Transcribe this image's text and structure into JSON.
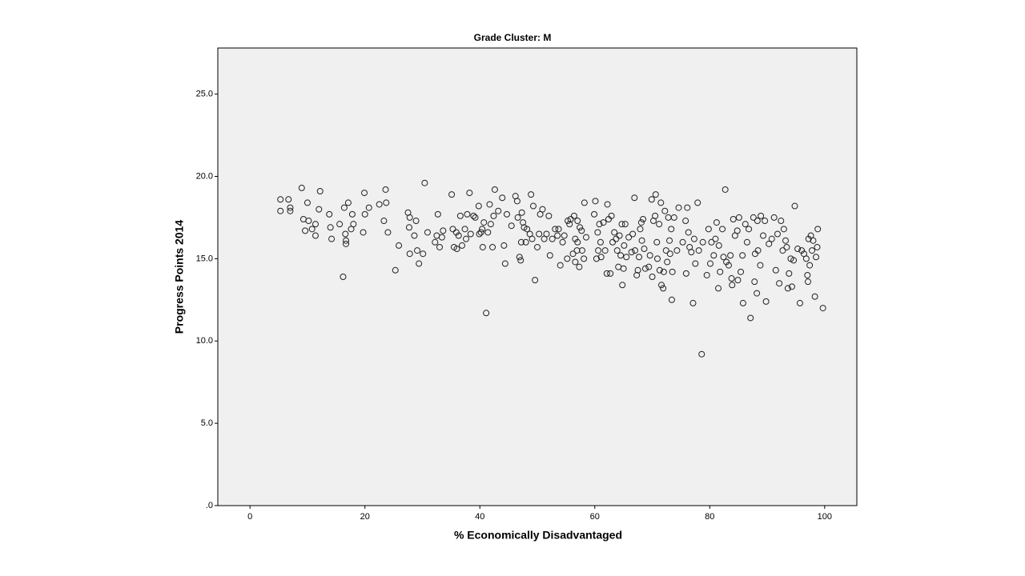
{
  "chart_data": {
    "type": "scatter",
    "title": "Grade Cluster: M",
    "x_label": "% Economically Disadvantaged",
    "y_label": "Progress Points 2014",
    "xlim": [
      -5.6,
      105.6
    ],
    "ylim": [
      0,
      27.8
    ],
    "xticks": [
      0,
      20,
      40,
      60,
      80,
      100
    ],
    "yticks": [
      {
        "value": 0,
        "label": ".0"
      },
      {
        "value": 5,
        "label": "5.0"
      },
      {
        "value": 10,
        "label": "10.0"
      },
      {
        "value": 15,
        "label": "15.0"
      },
      {
        "value": 20,
        "label": "20.0"
      },
      {
        "value": 25,
        "label": "25.0"
      }
    ],
    "color": "#222222",
    "x": [
      5.3,
      5.3,
      6.7,
      7,
      7,
      9,
      9.3,
      9.6,
      10,
      10.2,
      10.8,
      11.4,
      11.4,
      12,
      12.2,
      13.8,
      14,
      14.2,
      15.6,
      16.2,
      16.4,
      16.6,
      16.7,
      16.7,
      17.1,
      17.6,
      17.8,
      18,
      19.7,
      19.9,
      20,
      20.7,
      22.5,
      23.3,
      23.6,
      23.7,
      24,
      25.3,
      25.9,
      27.5,
      27.8,
      27.7,
      27.8,
      28.6,
      28.9,
      29.1,
      29.4,
      30.1,
      30.4,
      30.9,
      32.2,
      32.5,
      32.7,
      33,
      33.4,
      33.6,
      35.1,
      35.3,
      35.5,
      35.9,
      36,
      36.3,
      36.6,
      36.9,
      37.4,
      37.6,
      37.8,
      38.2,
      38.4,
      38.9,
      39.2,
      39.8,
      39.9,
      40.2,
      40.4,
      40.5,
      40.7,
      41.1,
      41.4,
      41.7,
      41.9,
      42.2,
      42.4,
      42.6,
      43.2,
      43.9,
      44.2,
      44.4,
      44.7,
      45.5,
      46.2,
      46.5,
      46.6,
      46.9,
      47.1,
      47.2,
      47.3,
      47.5,
      47.7,
      48,
      48.2,
      48.7,
      48.9,
      49.1,
      49.3,
      49.6,
      50,
      50.3,
      50.5,
      50.9,
      51.2,
      51.6,
      52,
      52.2,
      52.6,
      53.1,
      53.5,
      53.7,
      54,
      54.4,
      54.7,
      55.2,
      55.3,
      55.6,
      55.8,
      56.2,
      56.4,
      56.6,
      56.6,
      56.9,
      57,
      57,
      57.3,
      57.4,
      57.7,
      57.8,
      58.1,
      58.2,
      58.5,
      59.9,
      60.1,
      60.3,
      60.5,
      60.6,
      60.8,
      61,
      61.1,
      61.5,
      61.8,
      62.1,
      62.2,
      62.4,
      62.7,
      62.9,
      63.1,
      63.4,
      63.7,
      63.9,
      64.1,
      64.3,
      64.5,
      64.7,
      64.8,
      65,
      65.1,
      65.3,
      65.5,
      65.9,
      66.4,
      66.6,
      66.9,
      67,
      67.3,
      67.5,
      67.7,
      67.9,
      68.1,
      68.2,
      68.4,
      68.6,
      68.8,
      69.4,
      69.6,
      69.9,
      70,
      70.2,
      70.5,
      70.6,
      70.8,
      70.9,
      71.2,
      71.3,
      71.5,
      71.6,
      71.9,
      72,
      72.2,
      72.4,
      72.6,
      72.8,
      73,
      73.1,
      73.3,
      73.4,
      73.5,
      73.8,
      74.3,
      74.6,
      75.3,
      75.8,
      75.9,
      76.1,
      76.3,
      76.5,
      76.8,
      77.1,
      77.3,
      77.5,
      77.9,
      78.1,
      78.6,
      78.8,
      79.5,
      79.8,
      80.1,
      80.3,
      80.7,
      81,
      81.2,
      81.5,
      81.6,
      81.8,
      82.2,
      82.4,
      82.7,
      82.9,
      83.3,
      83.6,
      83.8,
      83.9,
      84.1,
      84.4,
      84.8,
      84.9,
      85.1,
      85.4,
      85.7,
      85.8,
      86.2,
      86.5,
      86.8,
      87.1,
      87.6,
      87.8,
      87.9,
      88.2,
      88.3,
      88.4,
      88.8,
      88.9,
      89.3,
      89.6,
      89.8,
      90.3,
      90.8,
      91.2,
      91.5,
      91.8,
      92.1,
      92.4,
      92.7,
      92.9,
      93.2,
      93.4,
      93.6,
      93.8,
      94.1,
      94.3,
      94.6,
      94.8,
      95.3,
      95.7,
      96,
      96.4,
      96.8,
      97,
      97.1,
      97.2,
      97.4,
      97.6,
      97.8,
      98,
      98.3,
      98.5,
      98.7,
      98.8,
      99.7
    ],
    "values": [
      18.6,
      17.9,
      18.6,
      18.1,
      17.9,
      19.3,
      17.4,
      16.7,
      18.4,
      17.3,
      16.8,
      16.4,
      17.1,
      18,
      19.1,
      17.7,
      16.9,
      16.2,
      17.1,
      13.9,
      18.1,
      16.5,
      16.1,
      15.9,
      18.4,
      16.8,
      17.7,
      17.1,
      16.6,
      19,
      17.7,
      18.1,
      18.3,
      17.3,
      19.2,
      18.4,
      16.6,
      14.3,
      15.8,
      17.8,
      17.5,
      16.9,
      15.3,
      16.4,
      17.3,
      15.5,
      14.7,
      15.3,
      19.6,
      16.6,
      16,
      16.4,
      17.7,
      15.7,
      16.3,
      16.7,
      18.9,
      16.8,
      15.7,
      16.6,
      15.6,
      16.4,
      17.6,
      15.8,
      16.8,
      16.2,
      17.7,
      19,
      16.5,
      17.6,
      17.5,
      18.2,
      16.5,
      16.6,
      16.8,
      15.7,
      17.2,
      11.7,
      16.6,
      18.3,
      17.1,
      15.7,
      17.6,
      19.2,
      17.9,
      18.7,
      15.8,
      14.7,
      17.7,
      17,
      18.8,
      18.5,
      17.5,
      15.1,
      14.9,
      16,
      17.8,
      17.2,
      16.9,
      16,
      16.8,
      16.5,
      18.9,
      16.2,
      18.2,
      13.7,
      15.7,
      16.5,
      17.7,
      18,
      16.2,
      16.5,
      17.6,
      15.2,
      16.2,
      16.8,
      16.4,
      16.8,
      14.6,
      16,
      16.4,
      15,
      17.3,
      17.1,
      17.4,
      15.3,
      17.6,
      14.8,
      16.2,
      15.5,
      16,
      17.3,
      14.5,
      16.9,
      16.7,
      15.5,
      15,
      18.4,
      16.3,
      17.7,
      18.5,
      15,
      16.6,
      15.5,
      17.1,
      16,
      15.1,
      17.2,
      15.5,
      14.1,
      18.3,
      17.4,
      14.1,
      17.6,
      16,
      16.6,
      16.2,
      15.5,
      14.5,
      16.4,
      15.2,
      17.1,
      13.4,
      14.4,
      15.8,
      17.1,
      15.1,
      16.3,
      15.4,
      16.5,
      18.7,
      15.5,
      14,
      14.3,
      15.1,
      16.8,
      17.2,
      16.1,
      17.4,
      15.6,
      14.4,
      14.5,
      15.2,
      18.6,
      13.9,
      17.3,
      17.6,
      18.9,
      16,
      15,
      17.1,
      14.3,
      18.4,
      13.4,
      13.2,
      14.2,
      17.9,
      15.5,
      14.8,
      17.5,
      16.1,
      15.3,
      16.8,
      12.5,
      14.2,
      17.5,
      15.5,
      18.1,
      16,
      17.3,
      14.1,
      18.1,
      16.6,
      15.7,
      15.4,
      12.3,
      16.2,
      14.7,
      18.4,
      15.5,
      9.2,
      16,
      14,
      16.8,
      14.7,
      16,
      15.2,
      16.2,
      17.2,
      13.2,
      15.8,
      14.2,
      16.8,
      15.1,
      19.2,
      14.8,
      14.6,
      15.2,
      13.8,
      13.4,
      17.4,
      16.4,
      16.7,
      13.7,
      17.5,
      14.2,
      15.2,
      12.3,
      17.1,
      16,
      16.8,
      11.4,
      17.5,
      13.6,
      15.3,
      12.9,
      17.3,
      15.5,
      14.6,
      17.6,
      16.4,
      17.3,
      12.4,
      15.9,
      16.2,
      17.5,
      14.3,
      16.5,
      13.5,
      17.3,
      15.5,
      16.8,
      16.1,
      15.7,
      13.2,
      14.1,
      15,
      13.3,
      14.9,
      18.2,
      15.6,
      12.3,
      15.5,
      15.3,
      15,
      14,
      13.6,
      16.2,
      14.6,
      16.4,
      15.5,
      16.1,
      12.7,
      15.1,
      15.7,
      16.8,
      12
    ]
  }
}
